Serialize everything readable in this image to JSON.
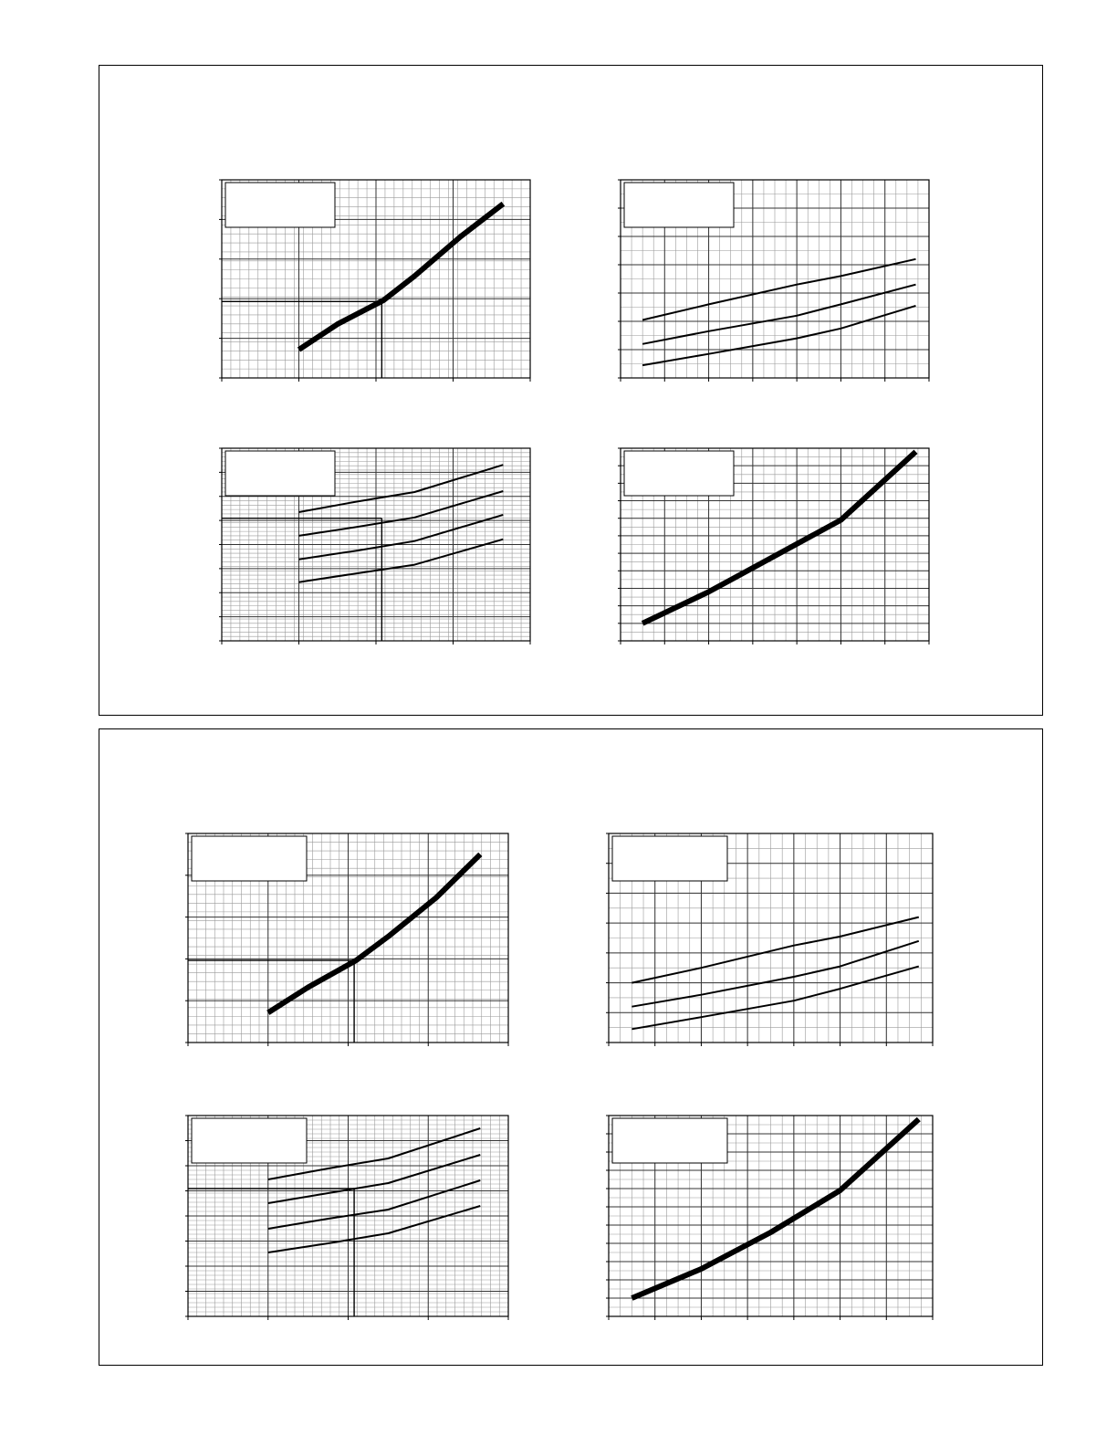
{
  "page": {
    "background": "#ffffff",
    "ink": "#000000"
  },
  "panels": [
    {
      "name": "performance-panel-top"
    },
    {
      "name": "performance-panel-bottom"
    }
  ],
  "chart_data": [
    {
      "id": "top-left",
      "type": "line",
      "title": "",
      "xlabel": "",
      "ylabel": "",
      "xlim": [
        0,
        8
      ],
      "ylim": [
        0,
        7
      ],
      "grid": "fine",
      "series": [
        {
          "values": [
            [
              2,
              1
            ],
            [
              3,
              1.9
            ],
            [
              4.2,
              2.75
            ],
            [
              5,
              3.6
            ],
            [
              6.2,
              5.0
            ],
            [
              7.3,
              6.15
            ]
          ],
          "style": "heavy"
        }
      ],
      "reference_point": [
        4.15,
        2.7
      ],
      "legend_box": "top-left"
    },
    {
      "id": "top-right",
      "type": "line",
      "title": "",
      "xlabel": "",
      "ylabel": "",
      "xlim": [
        0,
        7
      ],
      "ylim": [
        0,
        7
      ],
      "grid": "medium",
      "series": [
        {
          "values": [
            [
              0.5,
              2.05
            ],
            [
              2,
              2.6
            ],
            [
              4,
              3.3
            ],
            [
              5,
              3.6
            ],
            [
              6.7,
              4.2
            ]
          ]
        },
        {
          "values": [
            [
              0.5,
              1.2
            ],
            [
              2,
              1.65
            ],
            [
              4,
              2.2
            ],
            [
              5,
              2.6
            ],
            [
              6.7,
              3.3
            ]
          ]
        },
        {
          "values": [
            [
              0.5,
              0.45
            ],
            [
              2,
              0.85
            ],
            [
              4,
              1.4
            ],
            [
              5,
              1.75
            ],
            [
              6.7,
              2.55
            ]
          ]
        }
      ],
      "legend_box": "top-left"
    },
    {
      "id": "middle-left",
      "type": "line",
      "title": "",
      "xlabel": "",
      "ylabel": "",
      "xlim": [
        0,
        8
      ],
      "ylim": [
        0,
        11
      ],
      "grid": "fine",
      "series": [
        {
          "values": [
            [
              2,
              7.35
            ],
            [
              3.5,
              7.95
            ],
            [
              5,
              8.5
            ],
            [
              7.3,
              10.05
            ]
          ]
        },
        {
          "values": [
            [
              2,
              6.0
            ],
            [
              3.5,
              6.5
            ],
            [
              5,
              7.05
            ],
            [
              7.3,
              8.55
            ]
          ]
        },
        {
          "values": [
            [
              2,
              4.65
            ],
            [
              3.5,
              5.15
            ],
            [
              5,
              5.7
            ],
            [
              7.3,
              7.2
            ]
          ]
        },
        {
          "values": [
            [
              2,
              3.35
            ],
            [
              3.5,
              3.85
            ],
            [
              5,
              4.35
            ],
            [
              7.3,
              5.8
            ]
          ]
        }
      ],
      "reference_point": [
        4.15,
        7.0
      ],
      "legend_box": "top-left"
    },
    {
      "id": "middle-right",
      "type": "line",
      "title": "",
      "xlabel": "",
      "ylabel": "",
      "xlim": [
        0,
        7
      ],
      "ylim": [
        0,
        11
      ],
      "grid": "medium",
      "series": [
        {
          "values": [
            [
              0.5,
              1.0
            ],
            [
              2,
              2.8
            ],
            [
              3.5,
              4.85
            ],
            [
              5,
              6.9
            ],
            [
              6.7,
              10.8
            ]
          ],
          "style": "heavy"
        }
      ],
      "legend_box": "top-left"
    },
    {
      "id": "bottom-left-upper",
      "type": "line",
      "title": "",
      "xlabel": "",
      "ylabel": "",
      "xlim": [
        0,
        8
      ],
      "ylim": [
        0,
        7
      ],
      "grid": "fine",
      "series": [
        {
          "values": [
            [
              2,
              1
            ],
            [
              3,
              1.85
            ],
            [
              4.2,
              2.75
            ],
            [
              5,
              3.55
            ],
            [
              6.2,
              4.85
            ],
            [
              7.3,
              6.3
            ]
          ],
          "style": "heavy"
        }
      ],
      "reference_point": [
        4.15,
        2.75
      ],
      "legend_box": "top-left"
    },
    {
      "id": "bottom-right-upper",
      "type": "line",
      "title": "",
      "xlabel": "",
      "ylabel": "",
      "xlim": [
        0,
        7
      ],
      "ylim": [
        0,
        7
      ],
      "grid": "medium",
      "series": [
        {
          "values": [
            [
              0.5,
              2.0
            ],
            [
              2,
              2.5
            ],
            [
              4,
              3.25
            ],
            [
              5,
              3.55
            ],
            [
              6.7,
              4.2
            ]
          ]
        },
        {
          "values": [
            [
              0.5,
              1.2
            ],
            [
              2,
              1.6
            ],
            [
              4,
              2.2
            ],
            [
              5,
              2.55
            ],
            [
              6.7,
              3.4
            ]
          ]
        },
        {
          "values": [
            [
              0.5,
              0.45
            ],
            [
              2,
              0.85
            ],
            [
              4,
              1.4
            ],
            [
              5,
              1.8
            ],
            [
              6.7,
              2.55
            ]
          ]
        }
      ],
      "legend_box": "top-left"
    },
    {
      "id": "bottom-left-lower",
      "type": "line",
      "title": "",
      "xlabel": "",
      "ylabel": "",
      "xlim": [
        0,
        8
      ],
      "ylim": [
        0,
        11
      ],
      "grid": "fine",
      "series": [
        {
          "values": [
            [
              2,
              7.5
            ],
            [
              3.5,
              8.1
            ],
            [
              5,
              8.65
            ],
            [
              7.3,
              10.3
            ]
          ]
        },
        {
          "values": [
            [
              2,
              6.2
            ],
            [
              3.5,
              6.75
            ],
            [
              5,
              7.3
            ],
            [
              7.3,
              8.85
            ]
          ]
        },
        {
          "values": [
            [
              2,
              4.8
            ],
            [
              3.5,
              5.35
            ],
            [
              5,
              5.85
            ],
            [
              7.3,
              7.45
            ]
          ]
        },
        {
          "values": [
            [
              2,
              3.5
            ],
            [
              3.5,
              4.0
            ],
            [
              5,
              4.55
            ],
            [
              7.3,
              6.05
            ]
          ]
        }
      ],
      "reference_point": [
        4.15,
        7.0
      ],
      "legend_box": "top-left"
    },
    {
      "id": "bottom-right-lower",
      "type": "line",
      "title": "",
      "xlabel": "",
      "ylabel": "",
      "xlim": [
        0,
        7
      ],
      "ylim": [
        0,
        11
      ],
      "grid": "medium",
      "series": [
        {
          "values": [
            [
              0.5,
              1.0
            ],
            [
              2,
              2.6
            ],
            [
              3.5,
              4.6
            ],
            [
              5,
              6.9
            ],
            [
              6.7,
              10.8
            ]
          ],
          "style": "heavy"
        }
      ],
      "legend_box": "top-left"
    }
  ]
}
